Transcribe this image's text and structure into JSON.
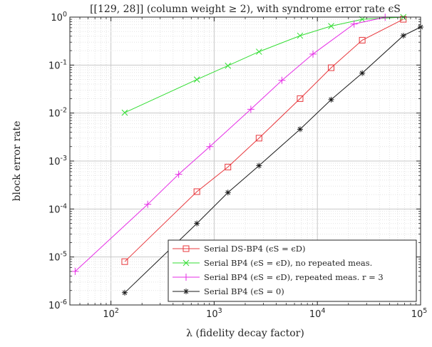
{
  "chart_data": {
    "type": "line",
    "title": "[[129, 28]] (column weight ≥ 2), with syndrome error rate ϵS",
    "xlabel": "λ (fidelity decay factor)",
    "ylabel": "block error rate",
    "xscale": "log",
    "yscale": "log",
    "xlim": [
      40,
      100000
    ],
    "ylim": [
      1e-06,
      1
    ],
    "grid": true,
    "minor_grid": true,
    "legend_placement": "bottom-right",
    "x_tick_labels": [
      {
        "value": 100,
        "base": "10",
        "exp": "2"
      },
      {
        "value": 1000,
        "base": "10",
        "exp": "3"
      },
      {
        "value": 10000,
        "base": "10",
        "exp": "4"
      },
      {
        "value": 100000,
        "base": "10",
        "exp": "5"
      }
    ],
    "y_tick_labels": [
      {
        "value": 1e-06,
        "base": "10",
        "exp": "-6"
      },
      {
        "value": 1e-05,
        "base": "10",
        "exp": "-5"
      },
      {
        "value": 0.0001,
        "base": "10",
        "exp": "-4"
      },
      {
        "value": 0.001,
        "base": "10",
        "exp": "-3"
      },
      {
        "value": 0.01,
        "base": "10",
        "exp": "-2"
      },
      {
        "value": 0.1,
        "base": "10",
        "exp": "-1"
      },
      {
        "value": 1,
        "base": "10",
        "exp": "0"
      }
    ],
    "series": [
      {
        "name": "Serial DS-BP4 (ϵS = ϵD)",
        "color": "#e8383d",
        "marker": "square",
        "x": [
          136,
          680,
          1360,
          2720,
          6800,
          13600,
          27200,
          68000
        ],
        "y": [
          8e-06,
          0.00023,
          0.00075,
          0.003,
          0.02,
          0.088,
          0.33,
          0.9
        ]
      },
      {
        "name": "Serial BP4 (ϵS = ϵD), no repeated meas.",
        "color": "#33dd33",
        "marker": "x",
        "x": [
          136,
          680,
          1360,
          2720,
          6800,
          13600,
          27200,
          68000
        ],
        "y": [
          0.0102,
          0.05,
          0.097,
          0.19,
          0.41,
          0.65,
          0.9,
          1.0
        ]
      },
      {
        "name": "Serial BP4 (ϵS = ϵD), repeated meas. r = 3",
        "color": "#e62ee6",
        "marker": "plus",
        "x": [
          45,
          227,
          453,
          907,
          2267,
          4533,
          9067,
          22667,
          45333
        ],
        "y": [
          5e-06,
          0.000125,
          0.00053,
          0.002,
          0.012,
          0.048,
          0.17,
          0.72,
          0.99
        ]
      },
      {
        "name": "Serial BP4 (ϵS = 0)",
        "color": "#1a1a1a",
        "marker": "asterisk",
        "x": [
          136,
          680,
          1360,
          2720,
          6800,
          13600,
          27200,
          68000,
          100000
        ],
        "y": [
          1.8e-06,
          5e-05,
          0.00022,
          0.0008,
          0.0046,
          0.019,
          0.068,
          0.41,
          0.62
        ]
      }
    ]
  }
}
